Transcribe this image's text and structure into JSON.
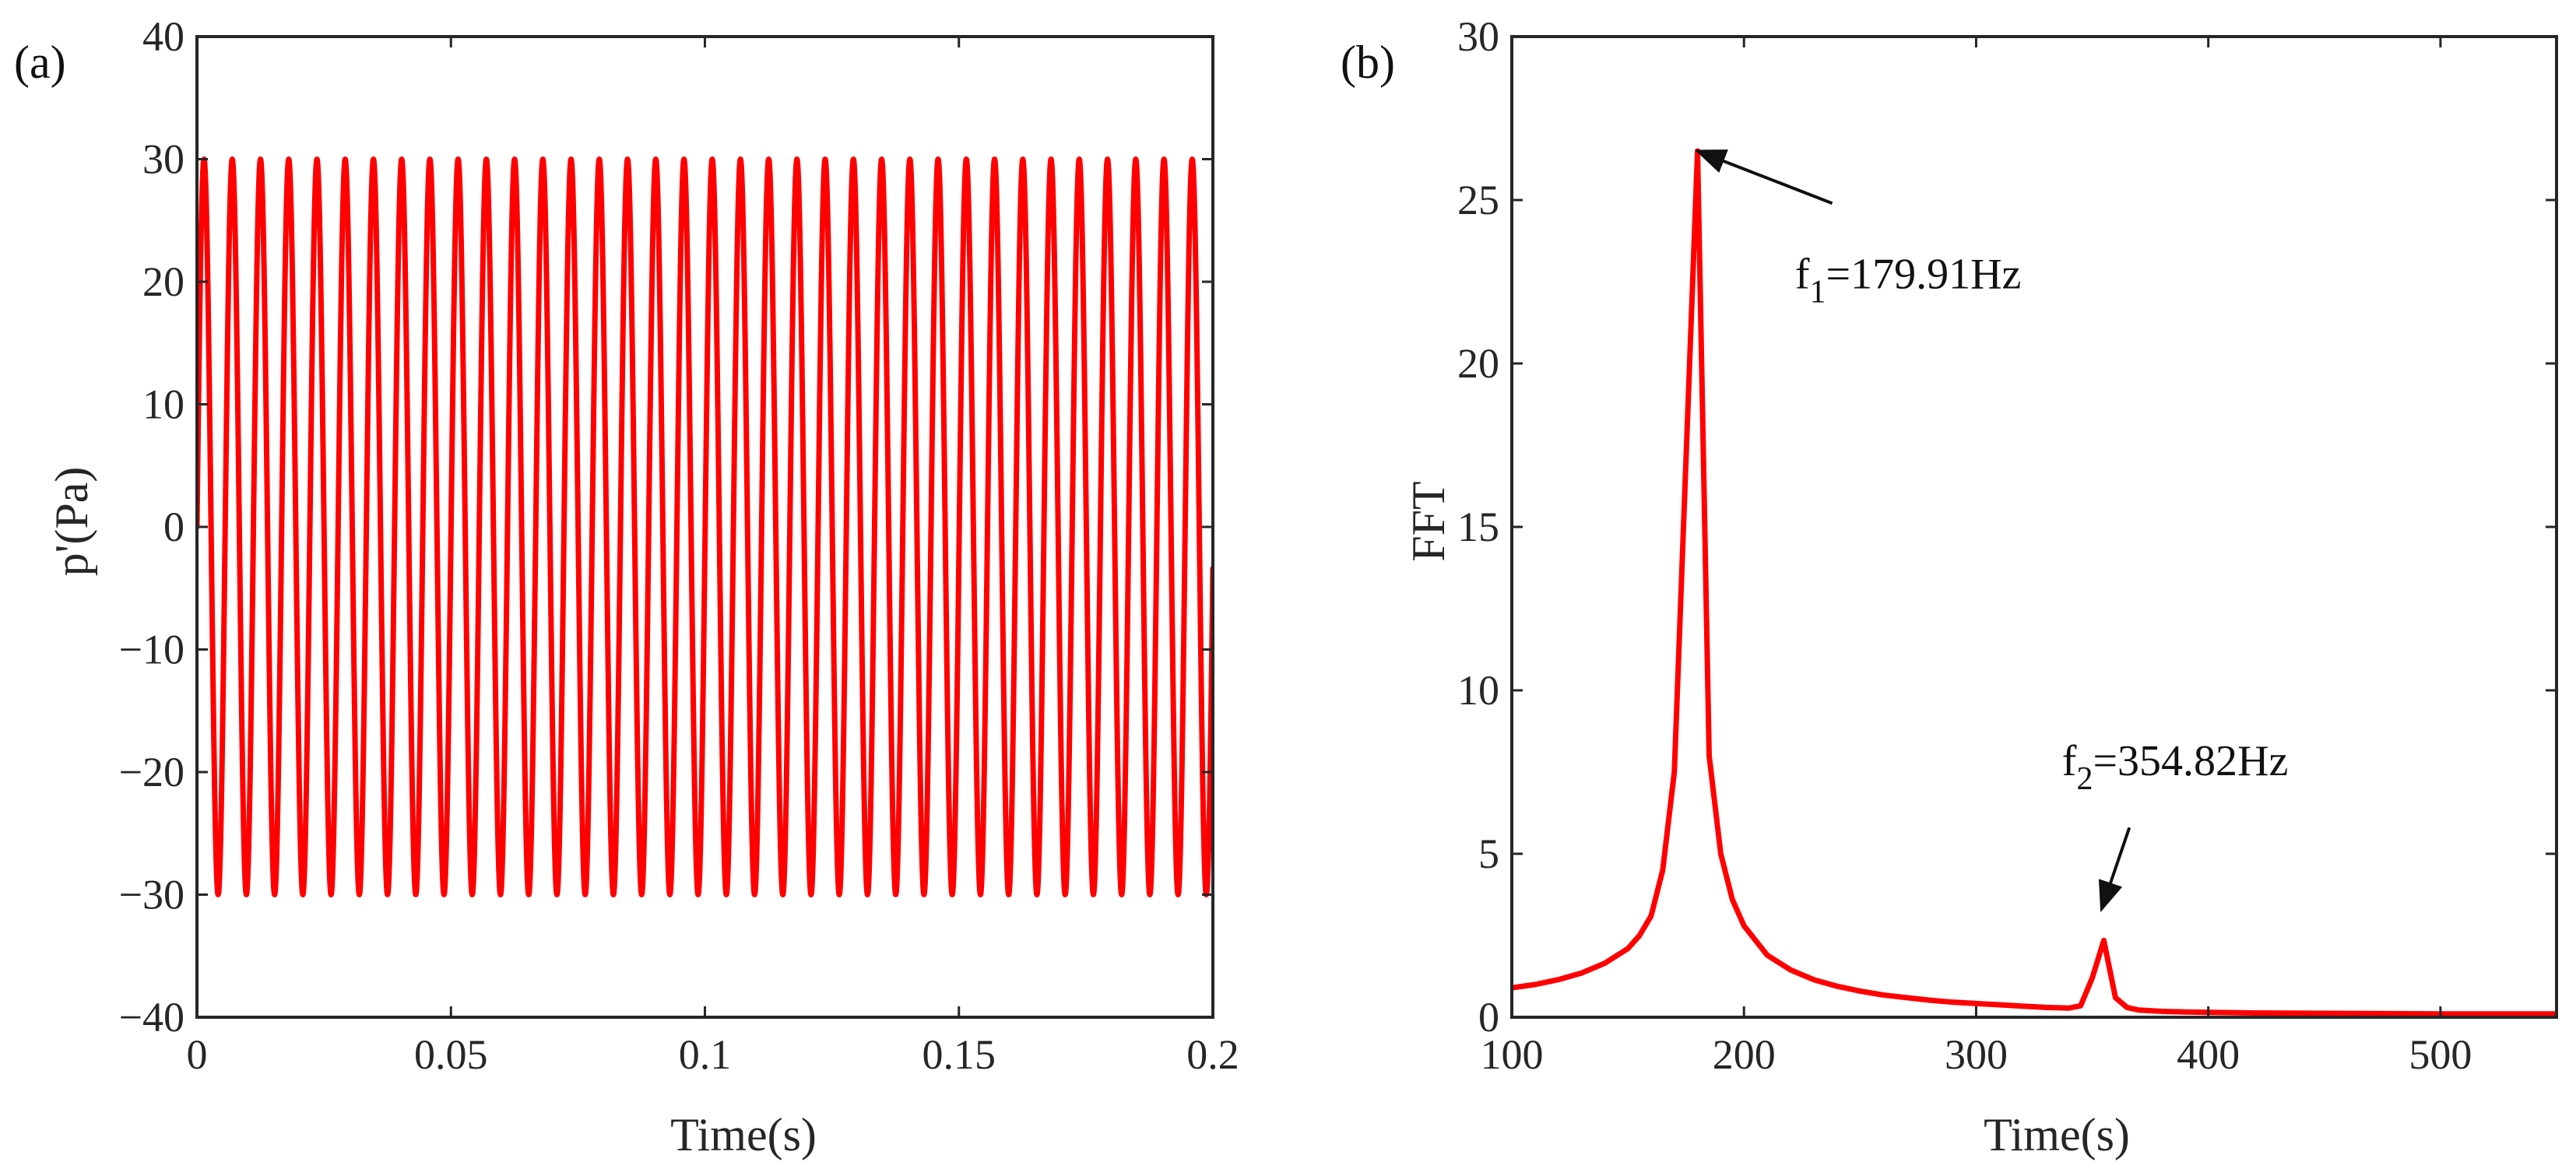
{
  "chart_data": [
    {
      "type": "line",
      "panel_label": "(a)",
      "title": "",
      "xlabel": "Time(s)",
      "ylabel": "p'(Pa)",
      "xlim": [
        0,
        0.2
      ],
      "ylim": [
        -40,
        40
      ],
      "xticks": [
        0,
        0.05,
        0.1,
        0.15,
        0.2
      ],
      "xtick_labels": [
        "0",
        "0.05",
        "0.1",
        "0.15",
        "0.2"
      ],
      "yticks": [
        -40,
        -30,
        -20,
        -10,
        0,
        10,
        20,
        30,
        40
      ],
      "ytick_labels": [
        "−40",
        "−30",
        "−20",
        "−10",
        "0",
        "10",
        "20",
        "30",
        "40"
      ],
      "series": [
        {
          "name": "p'",
          "color": "#ff0000",
          "signal": {
            "kind": "sine",
            "amplitude": 30,
            "frequency_hz": 179.91,
            "t_start": 0,
            "t_end": 0.2,
            "samples": 4000
          }
        }
      ],
      "grid": false
    },
    {
      "type": "line",
      "panel_label": "(b)",
      "title": "",
      "xlabel": "Time(s)",
      "ylabel": "FFT",
      "xlim": [
        100,
        550
      ],
      "ylim": [
        0,
        30
      ],
      "xticks": [
        100,
        200,
        300,
        400,
        500
      ],
      "xtick_labels": [
        "100",
        "200",
        "300",
        "400",
        "500"
      ],
      "yticks": [
        0,
        5,
        10,
        15,
        20,
        25,
        30
      ],
      "ytick_labels": [
        "0",
        "5",
        "10",
        "15",
        "20",
        "25",
        "30"
      ],
      "series": [
        {
          "name": "FFT",
          "color": "#ff0000",
          "x": [
            100,
            110,
            120,
            130,
            140,
            150,
            155,
            160,
            165,
            170,
            175,
            180,
            185,
            190,
            195,
            200,
            210,
            220,
            230,
            240,
            250,
            260,
            270,
            280,
            290,
            300,
            310,
            320,
            330,
            340,
            345,
            350,
            355,
            360,
            365,
            370,
            380,
            390,
            400,
            420,
            450,
            480,
            500,
            520,
            550
          ],
          "y": [
            0.9,
            1.0,
            1.15,
            1.35,
            1.65,
            2.1,
            2.5,
            3.1,
            4.5,
            7.5,
            17.0,
            26.5,
            8.0,
            5.0,
            3.6,
            2.8,
            1.9,
            1.45,
            1.15,
            0.95,
            0.8,
            0.68,
            0.6,
            0.52,
            0.46,
            0.42,
            0.38,
            0.34,
            0.3,
            0.28,
            0.35,
            1.2,
            2.35,
            0.6,
            0.3,
            0.22,
            0.18,
            0.16,
            0.15,
            0.13,
            0.12,
            0.11,
            0.1,
            0.1,
            0.1
          ]
        }
      ],
      "annotations": [
        {
          "label_base": "f",
          "label_sub": "1",
          "label_rest": "=179.91Hz",
          "text": "f1=179.91Hz",
          "target_x": 180,
          "target_y": 26.5,
          "label_x": 222,
          "label_y": 22.3,
          "tail_x": 238,
          "tail_y": 24.9
        },
        {
          "label_base": "f",
          "label_sub": "2",
          "label_rest": "=354.82Hz",
          "text": "f2=354.82Hz",
          "target_x": 354,
          "target_y": 3.3,
          "label_x": 337,
          "label_y": 7.4,
          "tail_x": 366,
          "tail_y": 5.8
        }
      ],
      "grid": false
    }
  ]
}
